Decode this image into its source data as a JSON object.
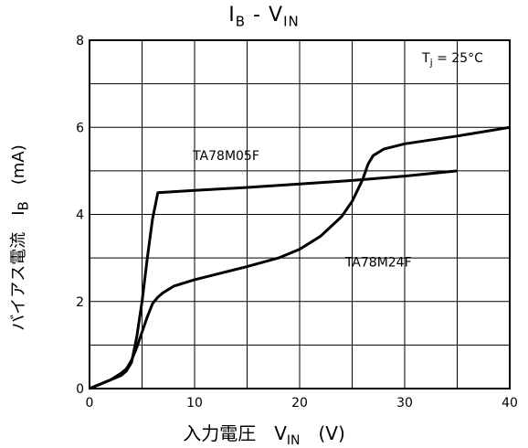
{
  "title": {
    "main": "I",
    "sub_main": "B",
    "sep": " - ",
    "var": "V",
    "sub_var": "IN"
  },
  "ylabel": {
    "text": "バイアス電流　I",
    "sub": "B",
    "unit": "　(mA)"
  },
  "xlabel": {
    "text": "入力電圧　V",
    "sub": "IN",
    "unit": "　(V)"
  },
  "condition": {
    "text": "T",
    "sub": "j",
    "value": " = 25°C"
  },
  "colors": {
    "line": "#000000",
    "grid": "#000000",
    "background": "#ffffff"
  },
  "chart_data": {
    "type": "line",
    "title": "IB - VIN",
    "xlabel": "入力電圧 VIN (V)",
    "ylabel": "バイアス電流 IB (mA)",
    "xlim": [
      0,
      40
    ],
    "ylim": [
      0,
      8
    ],
    "xticks": [
      0,
      10,
      20,
      30,
      40
    ],
    "yticks": [
      0,
      2,
      4,
      6,
      8
    ],
    "grid": true,
    "series": [
      {
        "name": "TA78M05F",
        "x": [
          0,
          1,
          2,
          3,
          3.5,
          4,
          4.5,
          5,
          5.5,
          6,
          6.5,
          10,
          15,
          20,
          25,
          30,
          35
        ],
        "y": [
          0,
          0.1,
          0.2,
          0.3,
          0.4,
          0.6,
          1.2,
          2.0,
          3.0,
          3.9,
          4.5,
          4.55,
          4.62,
          4.7,
          4.78,
          4.88,
          5.0
        ]
      },
      {
        "name": "TA78M24F",
        "x": [
          0,
          1,
          2,
          3,
          3.5,
          4,
          4.5,
          5,
          5.5,
          6,
          6.5,
          7,
          8,
          10,
          12,
          15,
          18,
          20,
          22,
          24,
          25,
          26,
          26.5,
          27,
          28,
          30,
          35,
          40
        ],
        "y": [
          0,
          0.1,
          0.2,
          0.35,
          0.45,
          0.65,
          0.95,
          1.3,
          1.65,
          1.95,
          2.1,
          2.2,
          2.35,
          2.5,
          2.62,
          2.8,
          3.0,
          3.2,
          3.5,
          3.95,
          4.3,
          4.8,
          5.15,
          5.35,
          5.5,
          5.62,
          5.8,
          6.0
        ]
      }
    ],
    "annotations": [
      {
        "text": "TA78M05F",
        "series": "TA78M05F"
      },
      {
        "text": "TA78M24F",
        "series": "TA78M24F"
      }
    ]
  }
}
